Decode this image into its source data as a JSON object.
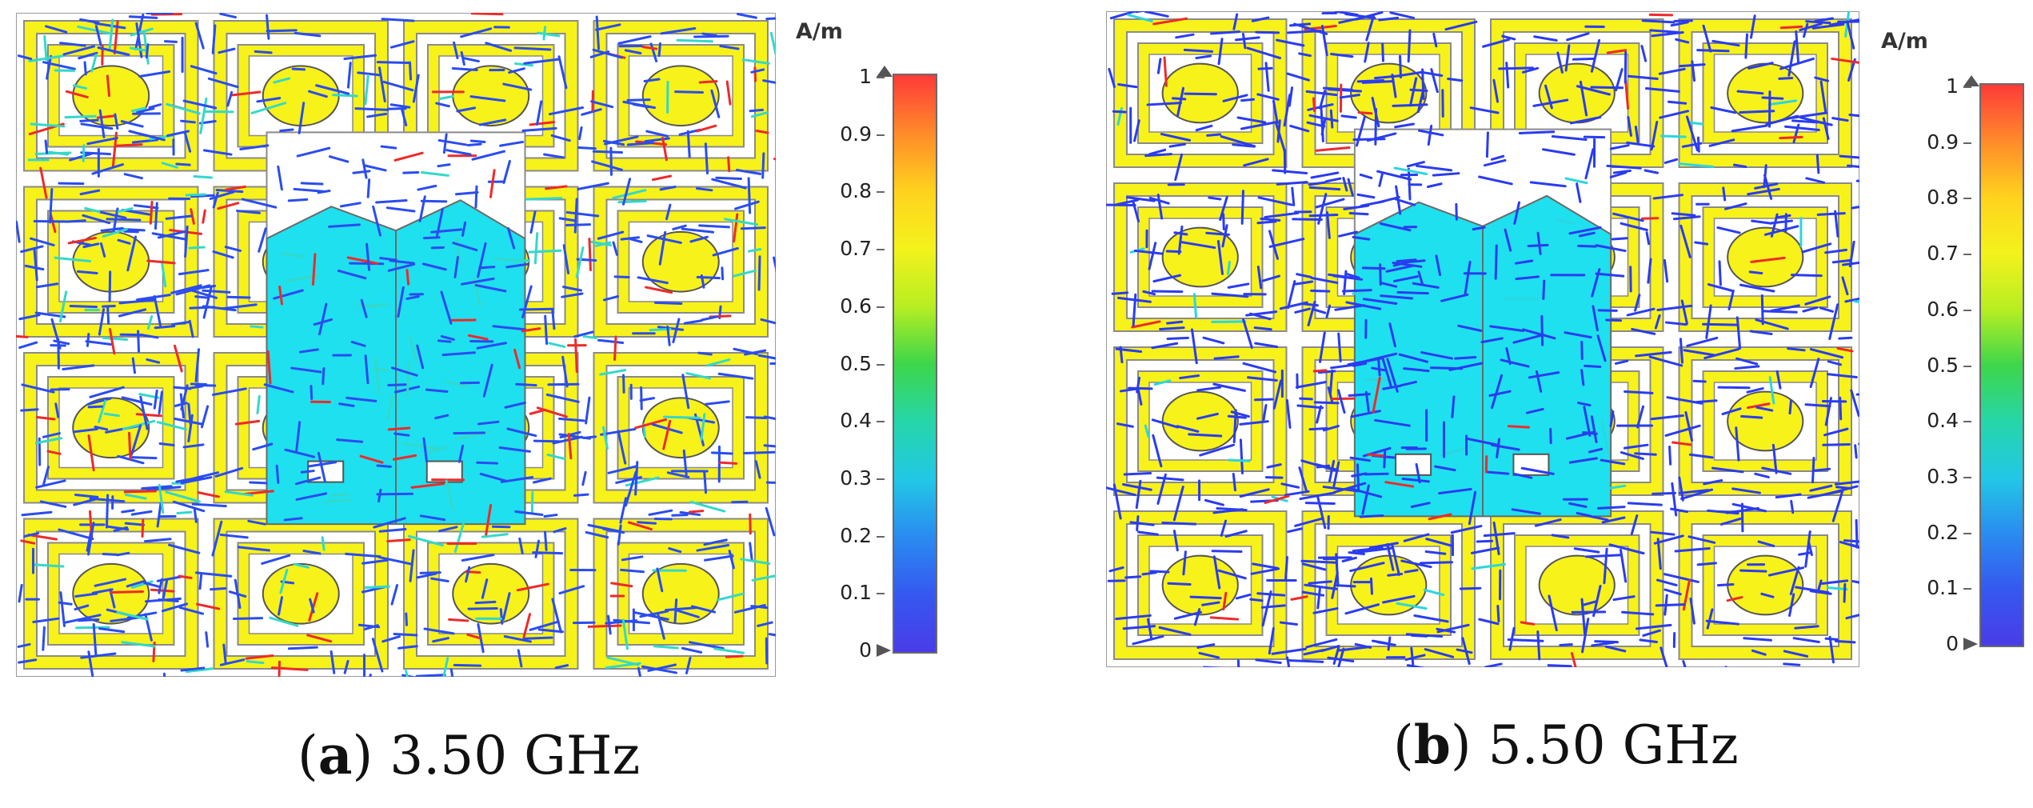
{
  "figure": {
    "colorbar": {
      "unit": "A/m",
      "ticks": [
        "1",
        "0.9",
        "0.8",
        "0.7",
        "0.6",
        "0.5",
        "0.4",
        "0.3",
        "0.2",
        "0.1",
        "0"
      ],
      "colors": [
        "#ff3a3a",
        "#ff8a2a",
        "#ffd21e",
        "#f4f21c",
        "#b8ee22",
        "#3ed64a",
        "#26d6a8",
        "#22c8e6",
        "#2a8cf0",
        "#3558f0",
        "#4a3ce8"
      ]
    },
    "panels": [
      {
        "id": "a",
        "label": "a",
        "caption_text": " 3.50 GHz",
        "frequency_ghz": 3.5
      },
      {
        "id": "b",
        "label": "b",
        "caption_text": " 5.50 GHz",
        "frequency_ghz": 5.5
      }
    ]
  }
}
